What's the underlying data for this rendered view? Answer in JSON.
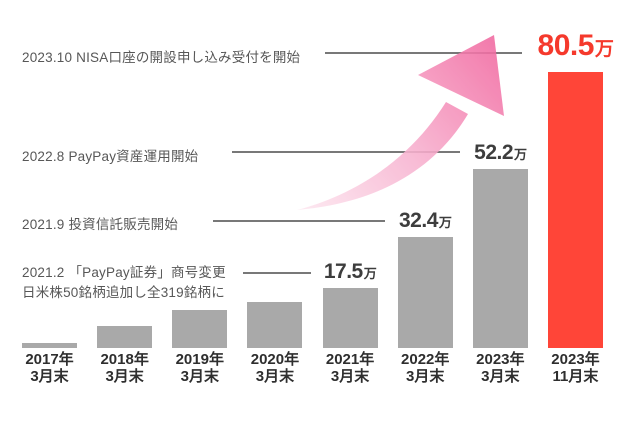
{
  "page": {
    "background": "#FFFFFF"
  },
  "colors": {
    "bar_gray": "#A9A9A9",
    "bar_red": "#FF4538",
    "value_text": "#3D3D3D",
    "value_text_red": "#F5392C",
    "annotation_text": "#575757",
    "axis_text": "#2E2E2E",
    "leader_line": "#787878",
    "arrow_pink_light": "#FDE7F0",
    "arrow_pink_mid": "#F8B4D1",
    "arrow_pink_deep": "#F1679F"
  },
  "annotations": [
    {
      "text": "2023.10 NISA口座の開設申し込み受付を開始"
    },
    {
      "text": "2022.8  PayPay資産運用開始"
    },
    {
      "text": "2021.9  投資信託販売開始"
    },
    {
      "text": "2021.2 「PayPay証券」商号変更",
      "text2": "日米株50銘柄追加し全319銘柄に"
    }
  ],
  "chart_data": {
    "type": "bar",
    "title": "",
    "unit": "万",
    "categories": [
      {
        "line1": "2017年",
        "line2": "3月末"
      },
      {
        "line1": "2018年",
        "line2": "3月末"
      },
      {
        "line1": "2019年",
        "line2": "3月末"
      },
      {
        "line1": "2020年",
        "line2": "3月末"
      },
      {
        "line1": "2021年",
        "line2": "3月末"
      },
      {
        "line1": "2022年",
        "line2": "3月末"
      },
      {
        "line1": "2023年",
        "line2": "3月末"
      },
      {
        "line1": "2023年",
        "line2": "11月末"
      }
    ],
    "values": [
      1.5,
      6.5,
      11,
      13.5,
      17.5,
      32.4,
      52.2,
      80.5
    ],
    "value_labels": [
      null,
      null,
      null,
      null,
      "17.5",
      "32.4",
      "52.2",
      "80.5"
    ],
    "estimated": [
      true,
      true,
      true,
      true,
      false,
      false,
      false,
      false
    ],
    "highlight_index": 7,
    "ylim": [
      0,
      80.5
    ],
    "grid": false,
    "legend": false
  }
}
